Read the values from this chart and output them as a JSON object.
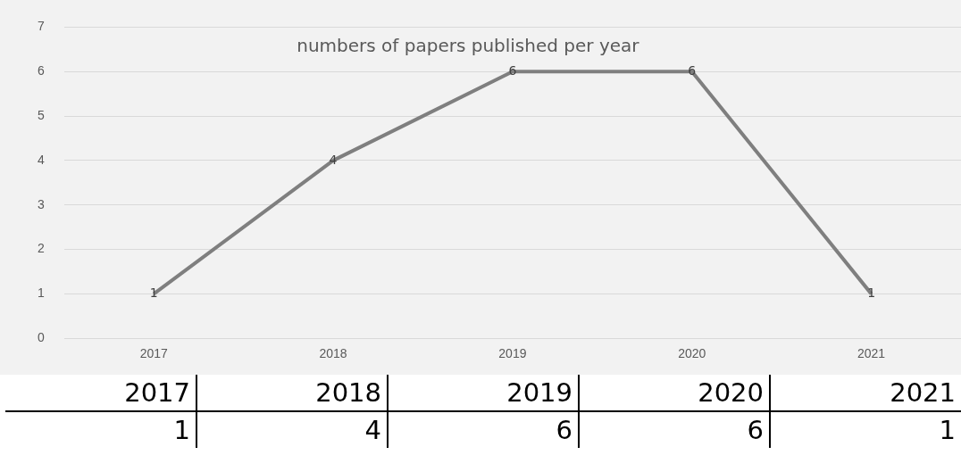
{
  "chart_data": {
    "type": "line",
    "title": "numbers of papers published per year",
    "categories": [
      "2017",
      "2018",
      "2019",
      "2020",
      "2021"
    ],
    "series": [
      {
        "color": "#7f7f7f",
        "values": [
          1,
          4,
          6,
          6,
          1
        ],
        "value_labels": [
          "1",
          "4",
          "6",
          "6",
          "1"
        ]
      }
    ],
    "ylim": [
      0,
      7
    ],
    "yticks": [
      0,
      1,
      2,
      3,
      4,
      5,
      6,
      7
    ],
    "grid": "y",
    "legend": false,
    "marker": "none",
    "line_style": "solid"
  }
}
